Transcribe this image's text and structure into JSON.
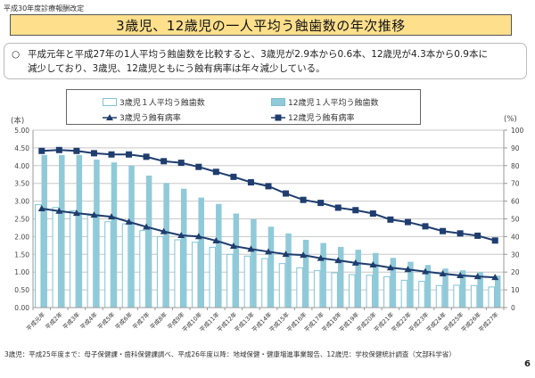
{
  "header": {
    "top_label": "平成30年度診療報酬改定",
    "title": "3歳児、12歳児の一人平均う蝕歯数の年次推移"
  },
  "summary": {
    "bullet": "○",
    "line1": "平成元年と平成27年の1人平均う蝕歯数を比較すると、3歳児が2.9本から0.6本、12歳児が4.3本から0.9本に",
    "line2": "減少しており、3歳児、12歳児ともにう蝕有病率は年々減少している。"
  },
  "footer": {
    "source": "3歳児：平成25年度まで：母子保健課・歯科保健課調べ、平成26年度以降：地域保健・健康増進事業報告、12歳児：学校保健統計調査（文部科学省）",
    "page_number": "6"
  },
  "colors": {
    "title_bg": "#fddf8c",
    "bar_12": "#90cad9",
    "bar_3_border": "#7fc4d8",
    "line_dark": "#1f3d6e",
    "grid": "#c8c8c8"
  },
  "chart_data": {
    "type": "bar",
    "title": "3歳児、12歳児の一人平均う蝕歯数の年次推移",
    "ylabel_left": "(本)",
    "ylabel_right": "(%)",
    "ylim_left": [
      0,
      5
    ],
    "ylim_right": [
      0,
      100
    ],
    "yticks_left": [
      "0.00",
      "0.50",
      "1.00",
      "1.50",
      "2.00",
      "2.50",
      "3.00",
      "3.50",
      "4.00",
      "4.50",
      "5.00"
    ],
    "yticks_right": [
      "0",
      "10",
      "20",
      "30",
      "40",
      "50",
      "60",
      "70",
      "80",
      "90",
      "100"
    ],
    "grid": true,
    "legend_position": "top",
    "legend": [
      "3歳児１人平均う蝕歯数",
      "12歳児１人平均う蝕歯数",
      "3歳児う蝕有病率",
      "12歳児う蝕有病率"
    ],
    "categories": [
      "平成元年",
      "平成2年",
      "平成3年",
      "平成4年",
      "平成5年",
      "平成6年",
      "平成7年",
      "平成8年",
      "平成9年",
      "平成10年",
      "平成11年",
      "平成12年",
      "平成13年",
      "平成14年",
      "平成15年",
      "平成16年",
      "平成17年",
      "平成18年",
      "平成19年",
      "平成20年",
      "平成21年",
      "平成22年",
      "平成23年",
      "平成24年",
      "平成25年",
      "平成26年",
      "平成27年"
    ],
    "series": [
      {
        "name": "3歳児１人平均う蝕歯数",
        "type": "bar",
        "axis": "left",
        "values": [
          2.9,
          2.82,
          2.73,
          2.6,
          2.42,
          2.36,
          2.17,
          2.0,
          1.91,
          1.84,
          1.7,
          1.5,
          1.45,
          1.38,
          1.24,
          1.12,
          1.04,
          0.98,
          0.93,
          0.91,
          0.87,
          0.77,
          0.74,
          0.62,
          0.63,
          0.62,
          0.58
        ]
      },
      {
        "name": "12歳児１人平均う蝕歯数",
        "type": "bar",
        "axis": "left",
        "values": [
          4.3,
          4.3,
          4.3,
          4.17,
          4.09,
          4.0,
          3.72,
          3.51,
          3.35,
          3.1,
          2.92,
          2.65,
          2.49,
          2.28,
          2.09,
          1.91,
          1.82,
          1.71,
          1.63,
          1.54,
          1.4,
          1.29,
          1.2,
          1.1,
          1.05,
          1.0,
          0.9
        ]
      },
      {
        "name": "3歳児う蝕有病率",
        "type": "line",
        "axis": "right",
        "marker": "triangle",
        "values": [
          55.8,
          54.4,
          53.2,
          52.2,
          51.2,
          48.3,
          45.5,
          42.9,
          40.7,
          40.1,
          37.7,
          34.7,
          33.0,
          31.5,
          30.1,
          29.6,
          27.8,
          26.6,
          25.2,
          24.1,
          22.5,
          21.5,
          20.3,
          19.1,
          18.1,
          17.5,
          17.0
        ]
      },
      {
        "name": "12歳児う蝕有病率",
        "type": "line",
        "axis": "right",
        "marker": "square",
        "values": [
          88.3,
          88.8,
          88.3,
          87.0,
          86.3,
          86.3,
          85.0,
          82.5,
          81.6,
          79.3,
          76.5,
          73.7,
          70.6,
          68.4,
          64.3,
          60.7,
          59.0,
          56.3,
          54.9,
          53.0,
          49.6,
          48.2,
          45.8,
          43.1,
          41.8,
          40.5,
          37.8
        ]
      }
    ]
  },
  "legend_labels": {
    "bar3": "3歳児１人平均う蝕歯数",
    "bar12": "12歳児１人平均う蝕歯数",
    "line3": "3歳児う蝕有病率",
    "line12": "12歳児う蝕有病率"
  },
  "units": {
    "left": "(本)",
    "right": "(%)"
  }
}
